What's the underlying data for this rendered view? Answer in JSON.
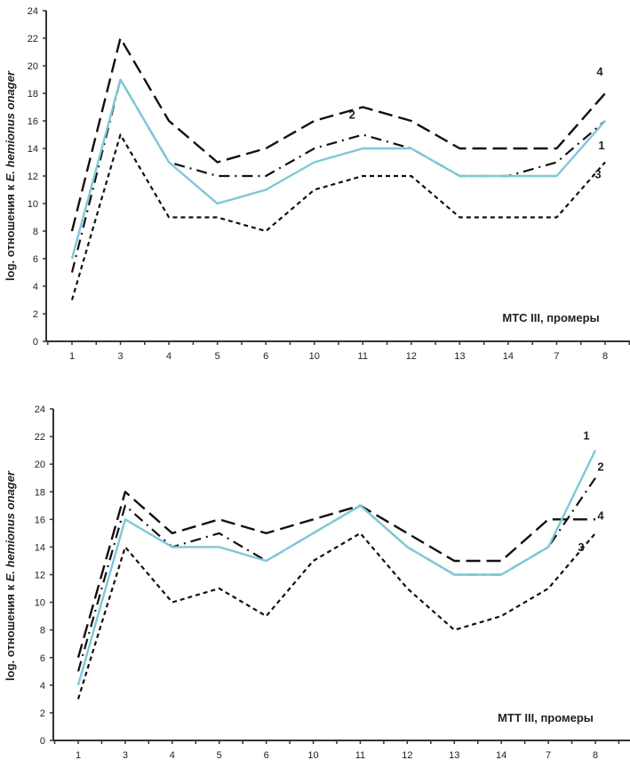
{
  "chart_data": [
    {
      "type": "line",
      "title": "",
      "xlabel": "МТС III, промеры",
      "ylabel_plain": "log. отношения к ",
      "ylabel_italic": "E. hemionus onager",
      "ylim": [
        0,
        24
      ],
      "yticks": [
        0,
        2,
        4,
        6,
        8,
        10,
        12,
        14,
        16,
        18,
        20,
        22,
        24
      ],
      "grid": false,
      "categories": [
        "1",
        "3",
        "4",
        "5",
        "6",
        "10",
        "11",
        "12",
        "13",
        "14",
        "7",
        "8"
      ],
      "series": [
        {
          "name": "1",
          "style": "solid-blue",
          "values": [
            6,
            19,
            13,
            10,
            11,
            13,
            14,
            14,
            12,
            12,
            12,
            16
          ]
        },
        {
          "name": "2",
          "style": "dash-dot",
          "values": [
            5,
            19,
            13,
            12,
            12,
            14,
            15,
            14,
            12,
            12,
            13,
            16
          ]
        },
        {
          "name": "3",
          "style": "short-dash",
          "values": [
            3,
            15,
            9,
            9,
            8,
            11,
            12,
            12,
            9,
            9,
            9,
            13
          ]
        },
        {
          "name": "4",
          "style": "long-dash",
          "values": [
            8,
            22,
            16,
            13,
            14,
            16,
            17,
            16,
            14,
            14,
            14,
            18
          ]
        }
      ],
      "series_labels": [
        {
          "text": "4",
          "series": "4",
          "at_category": "8"
        },
        {
          "text": "1",
          "series": "1",
          "at_category": "8"
        },
        {
          "text": "3",
          "series": "3",
          "at_category": "8"
        },
        {
          "text": "2",
          "series": "2",
          "at_category": "11"
        }
      ]
    },
    {
      "type": "line",
      "title": "",
      "xlabel": "МТТ III, промеры",
      "ylabel_plain": "log. отношения к ",
      "ylabel_italic": "E. hemionus onager",
      "ylim": [
        0,
        24
      ],
      "yticks": [
        0,
        2,
        4,
        6,
        8,
        10,
        12,
        14,
        16,
        18,
        20,
        22,
        24
      ],
      "grid": false,
      "categories": [
        "1",
        "3",
        "4",
        "5",
        "6",
        "10",
        "11",
        "12",
        "13",
        "14",
        "7",
        "8"
      ],
      "series": [
        {
          "name": "1",
          "style": "solid-blue",
          "values": [
            4,
            16,
            14,
            14,
            13,
            15,
            17,
            14,
            12,
            12,
            14,
            21
          ]
        },
        {
          "name": "2",
          "style": "dash-dot",
          "values": [
            5,
            17,
            14,
            15,
            13,
            15,
            17,
            14,
            12,
            12,
            14,
            19
          ]
        },
        {
          "name": "3",
          "style": "short-dash",
          "values": [
            3,
            14,
            10,
            11,
            9,
            13,
            15,
            11,
            8,
            9,
            11,
            15
          ]
        },
        {
          "name": "4",
          "style": "long-dash",
          "values": [
            6,
            18,
            15,
            16,
            15,
            16,
            17,
            15,
            13,
            13,
            16,
            16
          ]
        }
      ],
      "series_labels": [
        {
          "text": "1",
          "series": "1",
          "at_category": "8"
        },
        {
          "text": "2",
          "series": "2",
          "at_category": "8"
        },
        {
          "text": "4",
          "series": "4",
          "at_category": "8"
        },
        {
          "text": "3",
          "series": "3",
          "at_category": "8"
        }
      ]
    }
  ],
  "colors": {
    "series_1": "#7ec8d8",
    "series_other": "#111111",
    "axis": "#333333"
  }
}
